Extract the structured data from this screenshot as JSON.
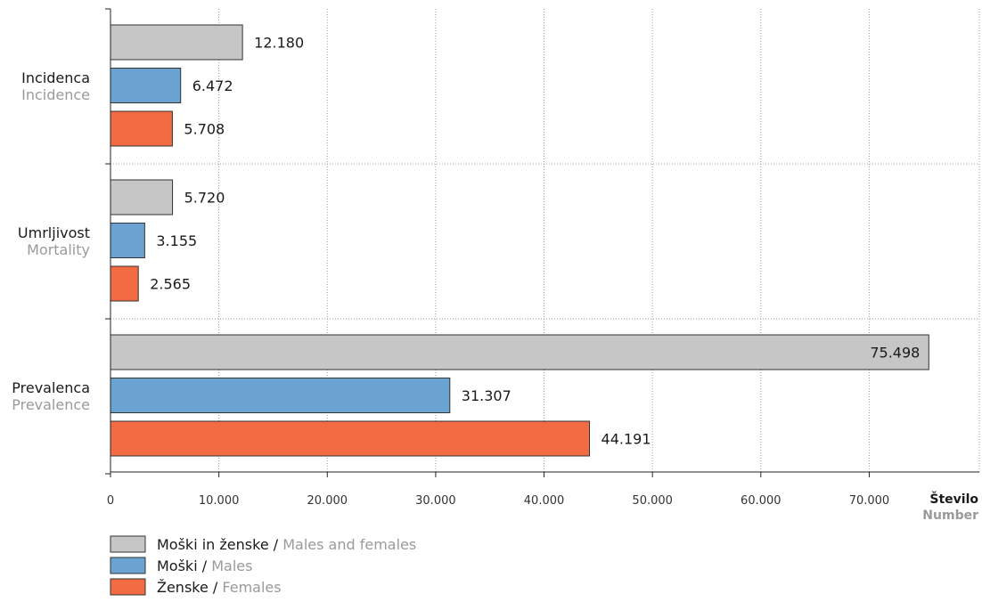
{
  "chart_data": {
    "type": "bar",
    "orientation": "horizontal",
    "categories": [
      {
        "name_sl": "Incidenca",
        "name_en": "Incidence"
      },
      {
        "name_sl": "Umrljivost",
        "name_en": "Mortality"
      },
      {
        "name_sl": "Prevalenca",
        "name_en": "Prevalence"
      }
    ],
    "series": [
      {
        "name_sl": "Moški in ženske",
        "name_en": "Males and females",
        "color": "#c6c6c6",
        "values": [
          12180,
          5720,
          75498
        ],
        "labels": [
          "12.180",
          "5.720",
          "75.498"
        ]
      },
      {
        "name_sl": "Moški",
        "name_en": "Males",
        "color": "#6aa3d2",
        "values": [
          6472,
          3155,
          31307
        ],
        "labels": [
          "6.472",
          "3.155",
          "31.307"
        ]
      },
      {
        "name_sl": "Ženske",
        "name_en": "Females",
        "color": "#f26b43",
        "values": [
          5708,
          2565,
          44191
        ],
        "labels": [
          "5.708",
          "2.565",
          "44.191"
        ]
      }
    ],
    "x_axis": {
      "label_sl": "Število",
      "label_en": "Number",
      "range": [
        0,
        80000
      ],
      "ticks": [
        0,
        10000,
        20000,
        30000,
        40000,
        50000,
        60000,
        70000
      ],
      "tick_labels": [
        "0",
        "10.000",
        "20.000",
        "30.000",
        "40.000",
        "50.000",
        "60.000",
        "70.000"
      ]
    },
    "grid": true,
    "legend": {
      "position": "bottom-left",
      "separator": " / "
    }
  }
}
